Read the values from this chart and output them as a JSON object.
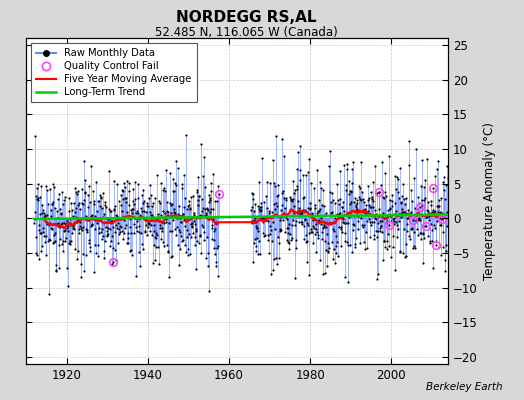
{
  "title": "NORDEGG RS,AL",
  "subtitle": "52.485 N, 116.065 W (Canada)",
  "ylabel": "Temperature Anomaly (°C)",
  "attribution": "Berkeley Earth",
  "ylim": [
    -21,
    26
  ],
  "yticks": [
    -20,
    -15,
    -10,
    -5,
    0,
    5,
    10,
    15,
    20,
    25
  ],
  "xlim": [
    1910,
    2014
  ],
  "xticks": [
    1920,
    1940,
    1960,
    1980,
    2000
  ],
  "start_year": 1912,
  "end_year": 2013,
  "gap_start": 1957,
  "gap_end": 1965,
  "trend_slope": 0.006,
  "bg_color": "#d8d8d8",
  "plot_bg_color": "#ffffff",
  "line_color": "#6688ff",
  "dot_color": "#000000",
  "ma_color": "#ff0000",
  "trend_color": "#00cc00",
  "qc_color": "#ff44ff",
  "seed": 99
}
